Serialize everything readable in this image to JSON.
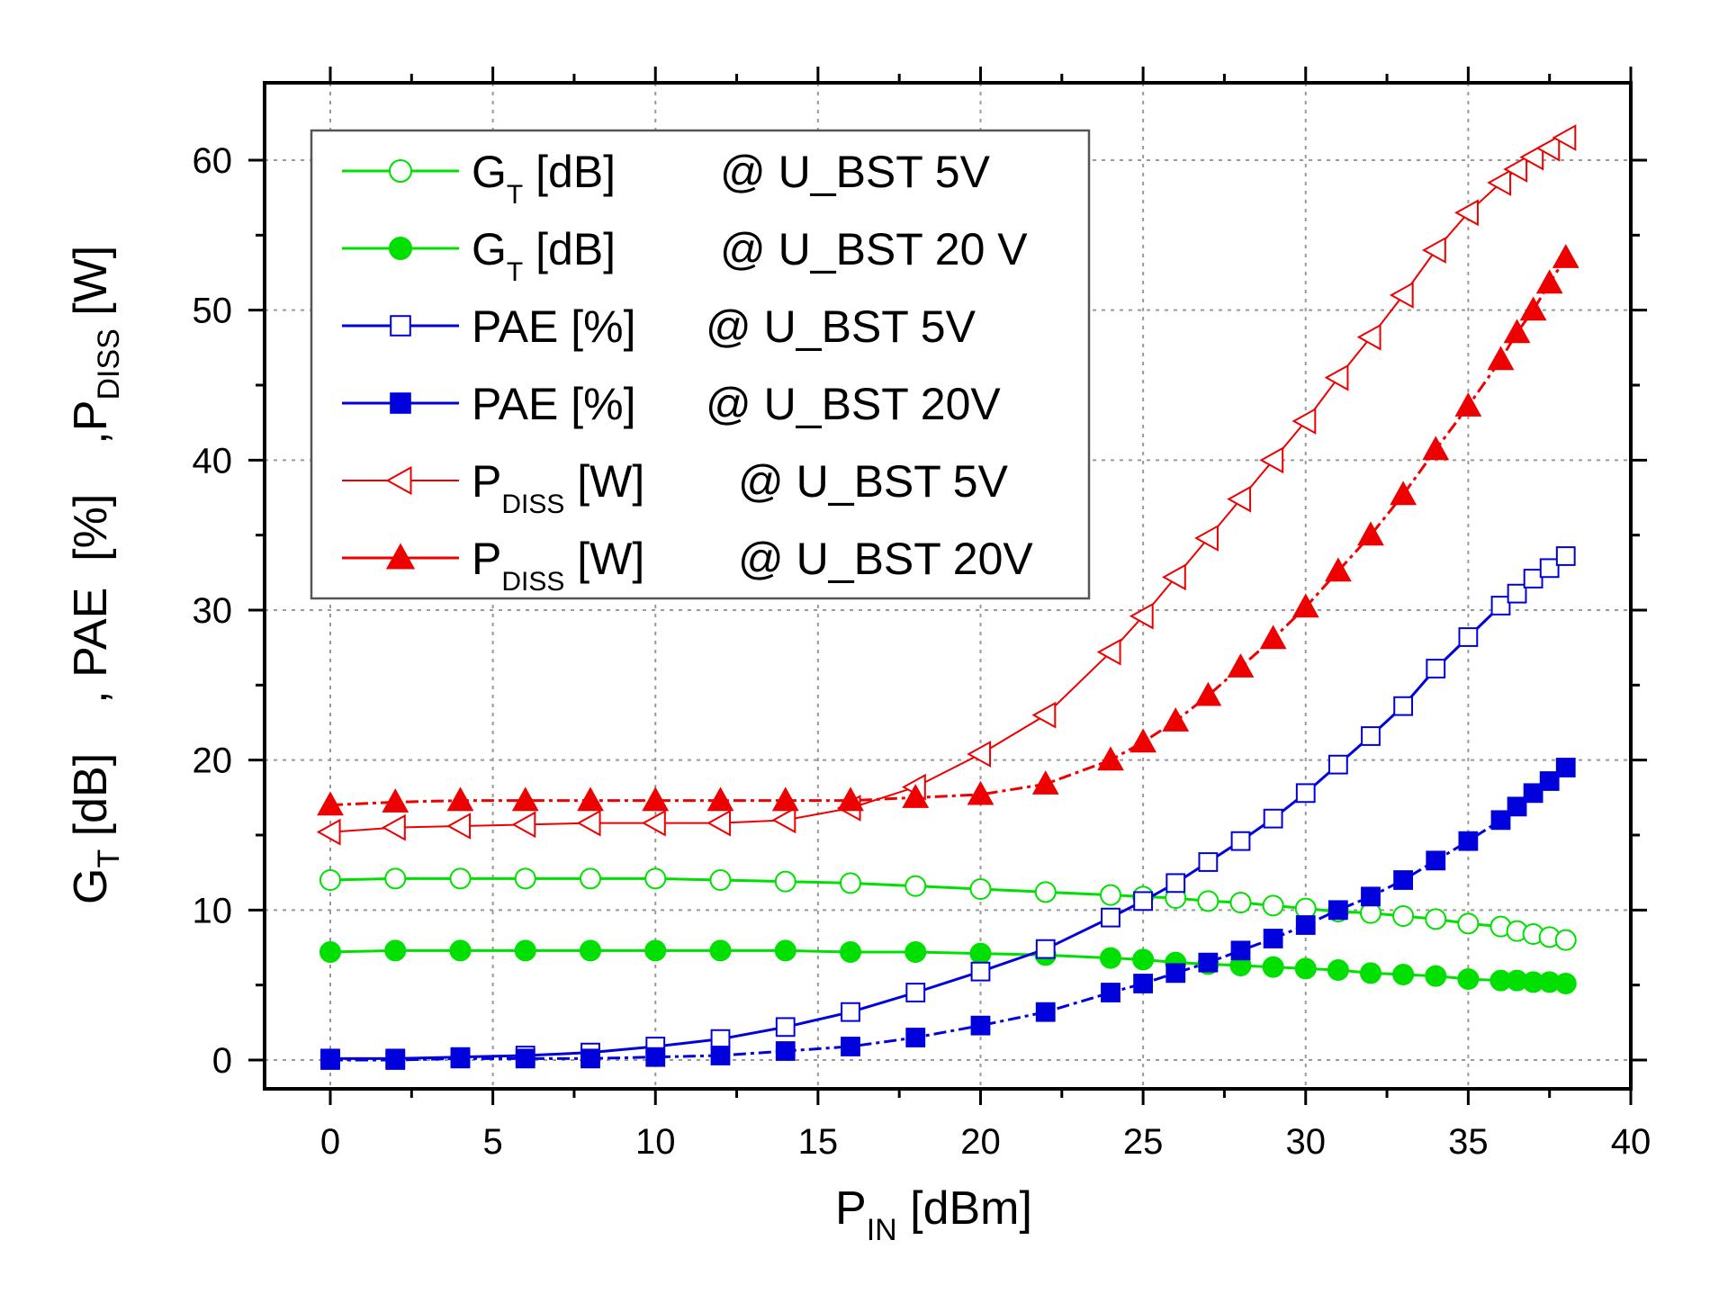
{
  "colors": {
    "green": "#00e000",
    "blue": "#0000dd",
    "red": "#ee0000",
    "grid": "#999999",
    "axis": "#000000"
  },
  "ylabel": {
    "part1_main": "G",
    "part1_sub": "T",
    "part1_unit": " [dB]",
    "part2": ", PAE  [%]",
    "part3_main": ",P",
    "part3_sub": "DISS",
    "part3_unit": " [W]"
  },
  "xlabel": {
    "main": "P",
    "sub": "IN",
    "unit": " [dBm]"
  },
  "chart_data": {
    "type": "line",
    "xlabel": "P_IN [dBm]",
    "ylabel": "G_T [dB], PAE [%], P_DISS [W]",
    "xlim": [
      -2,
      40
    ],
    "ylim": [
      -2,
      65
    ],
    "xticks": [
      "0",
      "5",
      "10",
      "15",
      "20",
      "25",
      "30",
      "35",
      "40"
    ],
    "yticks": [
      "0",
      "10",
      "20",
      "30",
      "40",
      "50",
      "60"
    ],
    "grid": true,
    "legend_position": "top-left",
    "series": [
      {
        "name": "GT [dB] @ U_BST 5V",
        "legend_main": "G",
        "legend_sub": "T",
        "legend_rest": "  [dB]",
        "legend_cond": "@ U_BST 5V",
        "color": "#00e000",
        "marker": "circle",
        "filled": false,
        "dash": "solid",
        "width": 3,
        "x": [
          0,
          2,
          4,
          6,
          8,
          10,
          12,
          14,
          16,
          18,
          20,
          22,
          24,
          25,
          26,
          27,
          28,
          29,
          30,
          31,
          32,
          33,
          34,
          35,
          36,
          36.5,
          37,
          37.5,
          38
        ],
        "y": [
          12.0,
          12.1,
          12.1,
          12.1,
          12.1,
          12.1,
          12.0,
          11.9,
          11.8,
          11.6,
          11.4,
          11.2,
          11.0,
          10.9,
          10.8,
          10.6,
          10.5,
          10.3,
          10.1,
          9.9,
          9.8,
          9.6,
          9.4,
          9.1,
          8.9,
          8.6,
          8.4,
          8.2,
          8.0
        ]
      },
      {
        "name": "GT [dB] @ U_BST 20 V",
        "legend_main": "G",
        "legend_sub": "T",
        "legend_rest": "  [dB]",
        "legend_cond": "@ U_BST 20 V",
        "color": "#00e000",
        "marker": "circle",
        "filled": true,
        "dash": "solid",
        "width": 3,
        "x": [
          0,
          2,
          4,
          6,
          8,
          10,
          12,
          14,
          16,
          18,
          20,
          22,
          24,
          25,
          26,
          27,
          28,
          29,
          30,
          31,
          32,
          33,
          34,
          35,
          36,
          36.5,
          37,
          37.5,
          38
        ],
        "y": [
          7.2,
          7.3,
          7.3,
          7.3,
          7.3,
          7.3,
          7.3,
          7.3,
          7.2,
          7.2,
          7.1,
          7.0,
          6.8,
          6.7,
          6.5,
          6.4,
          6.3,
          6.2,
          6.1,
          6.0,
          5.8,
          5.7,
          5.6,
          5.4,
          5.3,
          5.3,
          5.2,
          5.2,
          5.1
        ]
      },
      {
        "name": "PAE [%] @ U_BST 5V",
        "legend_main": "PAE",
        "legend_sub": "",
        "legend_rest": "  [%]",
        "legend_cond": "@ U_BST 5V",
        "color": "#0000dd",
        "marker": "square",
        "filled": false,
        "dash": "solid",
        "width": 3,
        "x": [
          0,
          2,
          4,
          6,
          8,
          10,
          12,
          14,
          16,
          18,
          20,
          22,
          24,
          25,
          26,
          27,
          28,
          29,
          30,
          31,
          32,
          33,
          34,
          35,
          36,
          36.5,
          37,
          37.5,
          38
        ],
        "y": [
          0.1,
          0.1,
          0.2,
          0.3,
          0.5,
          0.9,
          1.4,
          2.2,
          3.2,
          4.5,
          5.9,
          7.4,
          9.5,
          10.6,
          11.8,
          13.2,
          14.6,
          16.1,
          17.8,
          19.7,
          21.6,
          23.6,
          26.1,
          28.2,
          30.3,
          31.1,
          32.1,
          32.8,
          33.6
        ]
      },
      {
        "name": "PAE [%] @ U_BST 20V",
        "legend_main": "PAE",
        "legend_sub": "",
        "legend_rest": "  [%]",
        "legend_cond": "@ U_BST 20V",
        "color": "#0000dd",
        "marker": "square",
        "filled": true,
        "dash": "dashdot",
        "width": 3,
        "x": [
          0,
          2,
          4,
          6,
          8,
          10,
          12,
          14,
          16,
          18,
          20,
          22,
          24,
          25,
          26,
          27,
          28,
          29,
          30,
          31,
          32,
          33,
          34,
          35,
          36,
          36.5,
          37,
          37.5,
          38
        ],
        "y": [
          0.0,
          0.0,
          0.1,
          0.1,
          0.1,
          0.2,
          0.3,
          0.6,
          0.9,
          1.5,
          2.3,
          3.2,
          4.5,
          5.1,
          5.8,
          6.5,
          7.3,
          8.1,
          9.0,
          10.0,
          10.9,
          12.0,
          13.3,
          14.6,
          16.0,
          16.9,
          17.8,
          18.6,
          19.5
        ]
      },
      {
        "name": "PDISS [W] @ U_BST 5V",
        "legend_main": "P",
        "legend_sub": "DISS",
        "legend_rest": " [W]",
        "legend_cond": "@ U_BST 5V",
        "color": "#ee0000",
        "marker": "triangle-left",
        "filled": false,
        "dash": "solid",
        "width": 2,
        "x": [
          0,
          2,
          4,
          6,
          8,
          10,
          12,
          14,
          16,
          18,
          20,
          22,
          24,
          25,
          26,
          27,
          28,
          29,
          30,
          31,
          32,
          33,
          34,
          35,
          36,
          36.5,
          37,
          37.5,
          38
        ],
        "y": [
          15.2,
          15.5,
          15.6,
          15.7,
          15.8,
          15.8,
          15.8,
          16.0,
          16.8,
          18.2,
          20.4,
          23.0,
          27.2,
          29.6,
          32.2,
          34.8,
          37.4,
          40.0,
          42.6,
          45.5,
          48.2,
          51.0,
          54.0,
          56.5,
          58.5,
          59.4,
          60.2,
          60.8,
          61.5
        ]
      },
      {
        "name": "PDISS [W] @ U_BST 20V",
        "legend_main": "P",
        "legend_sub": "DISS",
        "legend_rest": " [W]",
        "legend_cond": "@ U_BST 20V",
        "color": "#ee0000",
        "marker": "triangle-up",
        "filled": true,
        "dash": "dashdot",
        "width": 3,
        "x": [
          0,
          2,
          4,
          6,
          8,
          10,
          12,
          14,
          16,
          18,
          20,
          22,
          24,
          25,
          26,
          27,
          28,
          29,
          30,
          31,
          32,
          33,
          34,
          35,
          36,
          36.5,
          37,
          37.5,
          38
        ],
        "y": [
          17.0,
          17.2,
          17.3,
          17.3,
          17.3,
          17.3,
          17.3,
          17.3,
          17.3,
          17.5,
          17.7,
          18.4,
          20.0,
          21.2,
          22.6,
          24.3,
          26.2,
          28.1,
          30.2,
          32.6,
          35.0,
          37.7,
          40.7,
          43.6,
          46.7,
          48.5,
          50.0,
          51.8,
          53.5
        ]
      }
    ]
  }
}
